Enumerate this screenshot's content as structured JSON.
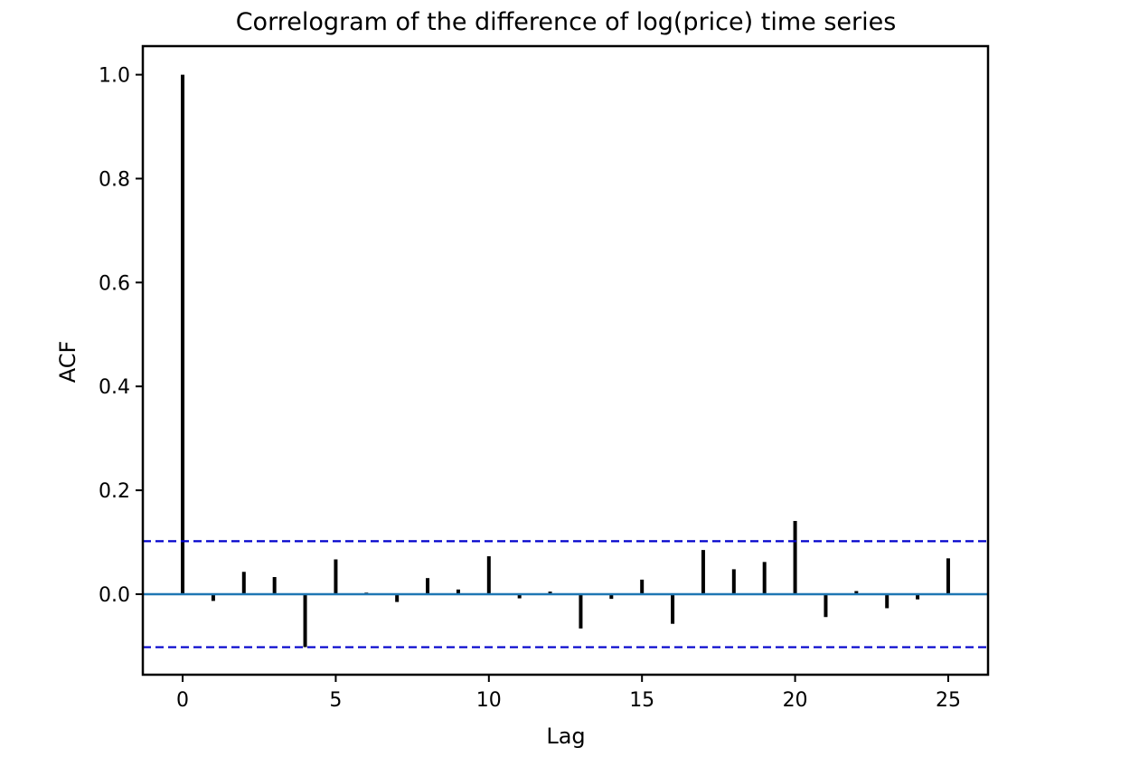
{
  "chart_data": {
    "type": "bar",
    "title": "Correlogram of the difference of log(price) time series",
    "xlabel": "Lag",
    "ylabel": "ACF",
    "xlim": [
      -1.3,
      26.3
    ],
    "ylim": [
      -0.155,
      1.055
    ],
    "xticks": [
      0,
      5,
      10,
      15,
      20,
      25
    ],
    "xtick_labels": [
      "0",
      "5",
      "10",
      "15",
      "20",
      "25"
    ],
    "yticks": [
      0.0,
      0.2,
      0.4,
      0.6,
      0.8,
      1.0
    ],
    "ytick_labels": [
      "0.0",
      "0.2",
      "0.4",
      "0.6",
      "0.8",
      "1.0"
    ],
    "grid": false,
    "series": [
      {
        "x": [
          0,
          1,
          2,
          3,
          4,
          5,
          6,
          7,
          8,
          9,
          10,
          11,
          12,
          13,
          14,
          15,
          16,
          17,
          18,
          19,
          20,
          21,
          22,
          23,
          24,
          25
        ],
        "values": [
          1.0,
          -0.013,
          0.043,
          0.033,
          -0.102,
          0.067,
          0.003,
          -0.015,
          0.031,
          0.009,
          0.073,
          -0.008,
          0.005,
          -0.066,
          -0.009,
          0.028,
          -0.057,
          0.085,
          0.048,
          0.062,
          0.141,
          -0.044,
          0.006,
          -0.027,
          -0.01,
          0.069
        ]
      }
    ],
    "confidence_band": [
      -0.102,
      0.102
    ],
    "colors": {
      "bars": "#000000",
      "zero_line": "#1f77b4",
      "confidence": "#0000cc"
    }
  }
}
